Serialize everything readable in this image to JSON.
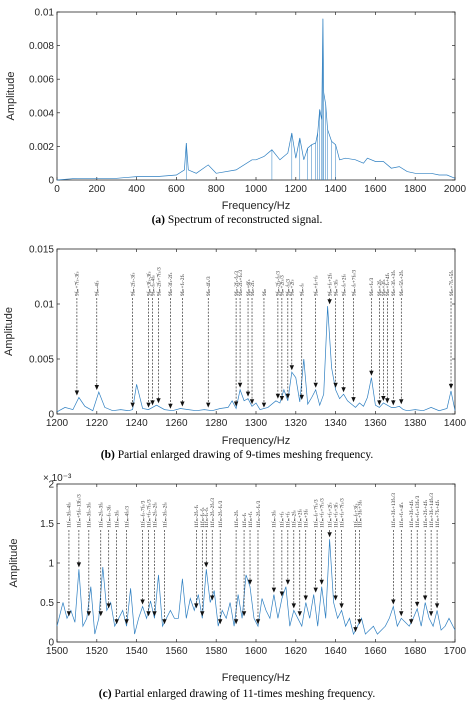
{
  "colors": {
    "spectrum": "#2e7fc1",
    "axes": "#262626",
    "arrow": "#111111"
  },
  "chart_data": [
    {
      "type": "line",
      "caption_letter": "(a)",
      "caption_text": " Spectrum of reconstructed signal.",
      "xlabel": "Frequency/Hz",
      "ylabel": "Amplitude",
      "xlim": [
        0,
        2000
      ],
      "ylim": [
        0,
        0.01
      ],
      "xticks": [
        "0",
        "200",
        "400",
        "600",
        "800",
        "1000",
        "1200",
        "1400",
        "1600",
        "1800",
        "2000"
      ],
      "yticks": [
        "0",
        "0.002",
        "0.004",
        "0.006",
        "0.008",
        "0.01"
      ],
      "series": [
        {
          "x": [
            0,
            100,
            200,
            300,
            400,
            500,
            600,
            640,
            650,
            660,
            700,
            760,
            800,
            900,
            980,
            1000,
            1040,
            1080,
            1120,
            1160,
            1180,
            1200,
            1220,
            1240,
            1260,
            1280,
            1300,
            1310,
            1320,
            1330,
            1336,
            1340,
            1350,
            1360,
            1380,
            1400,
            1420,
            1450,
            1500,
            1540,
            1560,
            1600,
            1640,
            1680,
            1720,
            1760,
            1800,
            1840,
            1880,
            1920,
            1960,
            2000
          ],
          "y": [
            0,
            0.0001,
            0.0001,
            0.0001,
            0.0002,
            0.0002,
            0.0003,
            0.0006,
            0.0022,
            0.0006,
            0.0004,
            0.0009,
            0.0004,
            0.0006,
            0.0012,
            0.0012,
            0.0014,
            0.0018,
            0.0012,
            0.0016,
            0.0028,
            0.0013,
            0.0025,
            0.0012,
            0.0019,
            0.0021,
            0.0022,
            0.0028,
            0.0042,
            0.0036,
            0.0096,
            0.0052,
            0.0045,
            0.003,
            0.0023,
            0.0021,
            0.0012,
            0.0013,
            0.0012,
            0.001,
            0.0013,
            0.0011,
            0.0011,
            0.0007,
            0.0008,
            0.0005,
            0.0004,
            0.0004,
            0.0004,
            0.0003,
            0.0003,
            0.0001
          ]
        }
      ]
    },
    {
      "type": "line",
      "caption_letter": "(b)",
      "caption_text": " Partial enlarged drawing of 9-times meshing frequency.",
      "xlabel": "Frequency/Hz",
      "ylabel": "Amplitude",
      "xlim": [
        1200,
        1400
      ],
      "ylim": [
        0,
        0.015
      ],
      "xticks": [
        "1200",
        "1220",
        "1240",
        "1260",
        "1280",
        "1300",
        "1320",
        "1340",
        "1360",
        "1380",
        "1400"
      ],
      "yticks": [
        "0",
        "0.005",
        "0.01",
        "0.015"
      ],
      "series": [
        {
          "x": [
            1200,
            1204,
            1208,
            1211,
            1214,
            1218,
            1221,
            1224,
            1228,
            1232,
            1236,
            1238,
            1240,
            1243,
            1246,
            1248,
            1250,
            1254,
            1258,
            1262,
            1266,
            1270,
            1274,
            1278,
            1282,
            1286,
            1288,
            1290,
            1292,
            1294,
            1296,
            1298,
            1300,
            1302,
            1306,
            1310,
            1312,
            1314,
            1316,
            1318,
            1320,
            1322,
            1324,
            1326,
            1328,
            1330,
            1332,
            1334,
            1336,
            1338,
            1340,
            1342,
            1344,
            1346,
            1348,
            1350,
            1352,
            1354,
            1356,
            1358,
            1360,
            1362,
            1364,
            1366,
            1368,
            1370,
            1372,
            1374,
            1376,
            1380,
            1384,
            1388,
            1392,
            1396,
            1398,
            1400
          ],
          "y": [
            0.0002,
            0.0006,
            0.0004,
            0.0015,
            0.0007,
            0.0003,
            0.002,
            0.0006,
            0.0003,
            0.0004,
            0.0003,
            0.0004,
            0.0027,
            0.0005,
            0.0004,
            0.0006,
            0.0008,
            0.0004,
            0.0003,
            0.0005,
            0.0004,
            0.0003,
            0.0004,
            0.0003,
            0.0005,
            0.0006,
            0.0012,
            0.0005,
            0.0022,
            0.0012,
            0.0014,
            0.0007,
            0.001,
            0.0004,
            0.0006,
            0.0012,
            0.001,
            0.0022,
            0.0012,
            0.0038,
            0.0033,
            0.0011,
            0.005,
            0.0009,
            0.0015,
            0.0022,
            0.0008,
            0.0018,
            0.0098,
            0.0042,
            0.0022,
            0.0014,
            0.0018,
            0.0012,
            0.0009,
            0.0006,
            0.001,
            0.0007,
            0.0015,
            0.0033,
            0.0008,
            0.0006,
            0.001,
            0.0008,
            0.0006,
            0.0006,
            0.0007,
            0.0004,
            0.0003,
            0.0004,
            0.0003,
            0.0006,
            0.0003,
            0.0005,
            0.0021,
            0.0003
          ]
        }
      ],
      "annotations": [
        {
          "x": 1210,
          "label": "9fₘ+7fₛ-3fₛ"
        },
        {
          "x": 1220,
          "label": "9fₘ-4fₛ"
        },
        {
          "x": 1238,
          "label": "9fₘ-2fₛ-3fₛ"
        },
        {
          "x": 1246,
          "label": "9fₘ+3fₛ-3fₛ"
        },
        {
          "x": 1248,
          "label": "9fₘ-fₛ-4fₛ"
        },
        {
          "x": 1251,
          "label": "9fₘ-2fₛ+7fₛ/3"
        },
        {
          "x": 1257,
          "label": "9fₘ-3fₛ-2fₛ"
        },
        {
          "x": 1263,
          "label": "9fₘ+fₛ-2fₛ"
        },
        {
          "x": 1276,
          "label": "9fₘ-4fₛ/3"
        },
        {
          "x": 1290,
          "label": "9fₘ-2fₛ-fₛ/3"
        },
        {
          "x": 1292,
          "label": "9fₘ-2fₛ+fₛ/3"
        },
        {
          "x": 1296,
          "label": "9fₘ+6fₛ"
        },
        {
          "x": 1298,
          "label": "9fₘ-2fₛ"
        },
        {
          "x": 1304,
          "label": "9fₘ"
        },
        {
          "x": 1311,
          "label": "9fₘ-2fₛ-fₛ/3"
        },
        {
          "x": 1313,
          "label": "9fₘ+2fₛ/3"
        },
        {
          "x": 1316,
          "label": "9fₘ-fₛ/3"
        },
        {
          "x": 1318,
          "label": "9fₘ+2fₛ"
        },
        {
          "x": 1323,
          "label": "9fₘ-fₛ"
        },
        {
          "x": 1330,
          "label": "9fₘ+fₛ+fₛ"
        },
        {
          "x": 1337,
          "label": "9fₘ+fₛ+2fₛ"
        },
        {
          "x": 1340,
          "label": "9fₘ+3fₛ"
        },
        {
          "x": 1344,
          "label": "9fₘ-fₛ+2fₛ"
        },
        {
          "x": 1349,
          "label": "9fₘ-fₛ+7fₛ/3"
        },
        {
          "x": 1358,
          "label": "9fₘ+fₛ/3"
        },
        {
          "x": 1362,
          "label": "9fₘ+2fₛ"
        },
        {
          "x": 1364,
          "label": "9fₘ+3fₛ"
        },
        {
          "x": 1366,
          "label": "9fₘ+fₛ+4fₛ"
        },
        {
          "x": 1369,
          "label": "9fₘ+3fₛ+3fₛ"
        },
        {
          "x": 1373,
          "label": "9fₘ+5fₛ+2fₛ"
        },
        {
          "x": 1398,
          "label": "9fₘ+7fₛ+5fₛ"
        }
      ]
    },
    {
      "type": "line",
      "caption_letter": "(c)",
      "caption_text": " Partial enlarged drawing of 11-times meshing frequency.",
      "xlabel": "Frequency/Hz",
      "ylabel": "Amplitude",
      "exponent": "× 10⁻³",
      "xlim": [
        1500,
        1700
      ],
      "ylim": [
        0,
        2
      ],
      "xticks": [
        "1500",
        "1520",
        "1540",
        "1560",
        "1580",
        "1600",
        "1620",
        "1640",
        "1660",
        "1680",
        "1700"
      ],
      "yticks": [
        "0",
        "0.5",
        "1",
        "1.5",
        "2"
      ],
      "series": [
        {
          "x": [
            1500,
            1503,
            1505,
            1507,
            1509,
            1511,
            1513,
            1515,
            1517,
            1519,
            1521,
            1523,
            1525,
            1527,
            1529,
            1531,
            1533,
            1535,
            1537,
            1539,
            1541,
            1543,
            1545,
            1547,
            1549,
            1551,
            1553,
            1555,
            1557,
            1559,
            1561,
            1563,
            1565,
            1567,
            1569,
            1571,
            1573,
            1575,
            1577,
            1579,
            1581,
            1583,
            1585,
            1587,
            1589,
            1591,
            1593,
            1595,
            1597,
            1599,
            1601,
            1603,
            1605,
            1607,
            1609,
            1611,
            1613,
            1615,
            1617,
            1619,
            1621,
            1623,
            1625,
            1627,
            1629,
            1631,
            1633,
            1635,
            1637,
            1639,
            1641,
            1643,
            1645,
            1647,
            1649,
            1651,
            1653,
            1655,
            1657,
            1659,
            1661,
            1663,
            1665,
            1667,
            1669,
            1671,
            1673,
            1675,
            1677,
            1679,
            1681,
            1683,
            1685,
            1687,
            1689,
            1691,
            1693,
            1695,
            1697,
            1700
          ],
          "y": [
            0.2,
            0.5,
            0.3,
            0.4,
            0.25,
            0.92,
            0.2,
            0.3,
            0.7,
            0.1,
            0.3,
            0.95,
            0.4,
            0.5,
            0.2,
            0.3,
            0.4,
            0.2,
            0.68,
            0.1,
            0.3,
            0.45,
            0.3,
            0.52,
            0.3,
            0.85,
            0.2,
            0.3,
            0.4,
            0.3,
            0.3,
            0.8,
            0.3,
            0.55,
            0.4,
            0.6,
            0.3,
            0.92,
            0.5,
            0.65,
            0.2,
            0.4,
            0.3,
            0.5,
            0.2,
            0.6,
            0.3,
            0.85,
            0.7,
            0.3,
            0.2,
            0.55,
            0.4,
            0.3,
            0.6,
            0.3,
            0.55,
            0.7,
            0.2,
            0.4,
            0.3,
            0.2,
            0.5,
            0.3,
            0.6,
            0.2,
            0.7,
            0.3,
            1.3,
            0.5,
            0.3,
            0.4,
            0.2,
            0.3,
            0.1,
            0.2,
            0.3,
            0.1,
            0.15,
            0.2,
            0.1,
            0.15,
            0.2,
            0.3,
            0.45,
            0.2,
            0.3,
            0.25,
            0.2,
            0.3,
            0.42,
            0.2,
            0.5,
            0.3,
            0.2,
            0.4,
            0.15,
            0.2,
            0.3,
            0.15
          ]
        }
      ],
      "annotations": [
        {
          "x": 1506,
          "label": "11fₘ-3fₛ-4fₛ"
        },
        {
          "x": 1511,
          "label": "11fₘ+5fₛ-13fₛ/3"
        },
        {
          "x": 1516,
          "label": "11fₘ-3fₛ-3fₛ"
        },
        {
          "x": 1522,
          "label": "11fₘ-2fₛ-3fₛ"
        },
        {
          "x": 1526,
          "label": "11fₘ-fₛ-3fₛ"
        },
        {
          "x": 1530,
          "label": "11fₘ-3fₛ"
        },
        {
          "x": 1535,
          "label": "11fₘ-4fₛ/3"
        },
        {
          "x": 1543,
          "label": "11fₘ-fₛ-7fₛ/3"
        },
        {
          "x": 1546,
          "label": "11fₘ+fₛ-7fₛ/3"
        },
        {
          "x": 1549,
          "label": "11fₘ-2fₛ-2fₛ"
        },
        {
          "x": 1554,
          "label": "11fₘ-3fₛ-2fₛ"
        },
        {
          "x": 1570,
          "label": "11fₘ-2fₛ-fₛ"
        },
        {
          "x": 1573,
          "label": "11fₘ-fₛ-fₛ"
        },
        {
          "x": 1575,
          "label": "11fₘ-fₛ-fₛ"
        },
        {
          "x": 1578,
          "label": "11fₘ-2fₛ-2fₛ/3"
        },
        {
          "x": 1582,
          "label": "11fₘ-2fₛ-fₛ/3"
        },
        {
          "x": 1590,
          "label": "11fₘ-2fₛ"
        },
        {
          "x": 1594,
          "label": "11fₘ-fₛ"
        },
        {
          "x": 1597,
          "label": "11fₘ+fₛ"
        },
        {
          "x": 1601,
          "label": "11fₘ-2fₛ-fₛ/3"
        },
        {
          "x": 1609,
          "label": "11fₘ-3fₛ"
        },
        {
          "x": 1613,
          "label": "11fₘ+fₛ"
        },
        {
          "x": 1616,
          "label": "11fₘ+fₛ"
        },
        {
          "x": 1619,
          "label": "11fₘ-2fₛ"
        },
        {
          "x": 1622,
          "label": "11fₘ+2fₛ"
        },
        {
          "x": 1625,
          "label": "11fₘ+3fₛ"
        },
        {
          "x": 1630,
          "label": "11fₘ-fₛ+7fₛ/3"
        },
        {
          "x": 1633,
          "label": "11fₘ+fₛ+7fₛ/3"
        },
        {
          "x": 1637,
          "label": "11fₘ+fₛ+2fₛ"
        },
        {
          "x": 1640,
          "label": "11fₘ+fₛ+3fₛ"
        },
        {
          "x": 1643,
          "label": "11fₘ+fₛ+7fₛ/3"
        },
        {
          "x": 1650,
          "label": "11fₘ-fₛ+3fₛ"
        },
        {
          "x": 1652,
          "label": "11fₘ+3fₛ+3fₛ"
        },
        {
          "x": 1669,
          "label": "11fₘ+3fₛ+13fₛ/3"
        },
        {
          "x": 1673,
          "label": "11fₘ+fₛ+4fₛ"
        },
        {
          "x": 1678,
          "label": "11fₘ+3fₛ+4fₛ"
        },
        {
          "x": 1681,
          "label": "11fₘ+fₛ+13fₛ/3"
        },
        {
          "x": 1685,
          "label": "11fₘ+2fₛ+4fₛ"
        },
        {
          "x": 1688,
          "label": "11fₘ+3fₛ+14fₛ/3"
        },
        {
          "x": 1691,
          "label": "11fₘ+7fₛ+4fₛ"
        }
      ]
    }
  ]
}
